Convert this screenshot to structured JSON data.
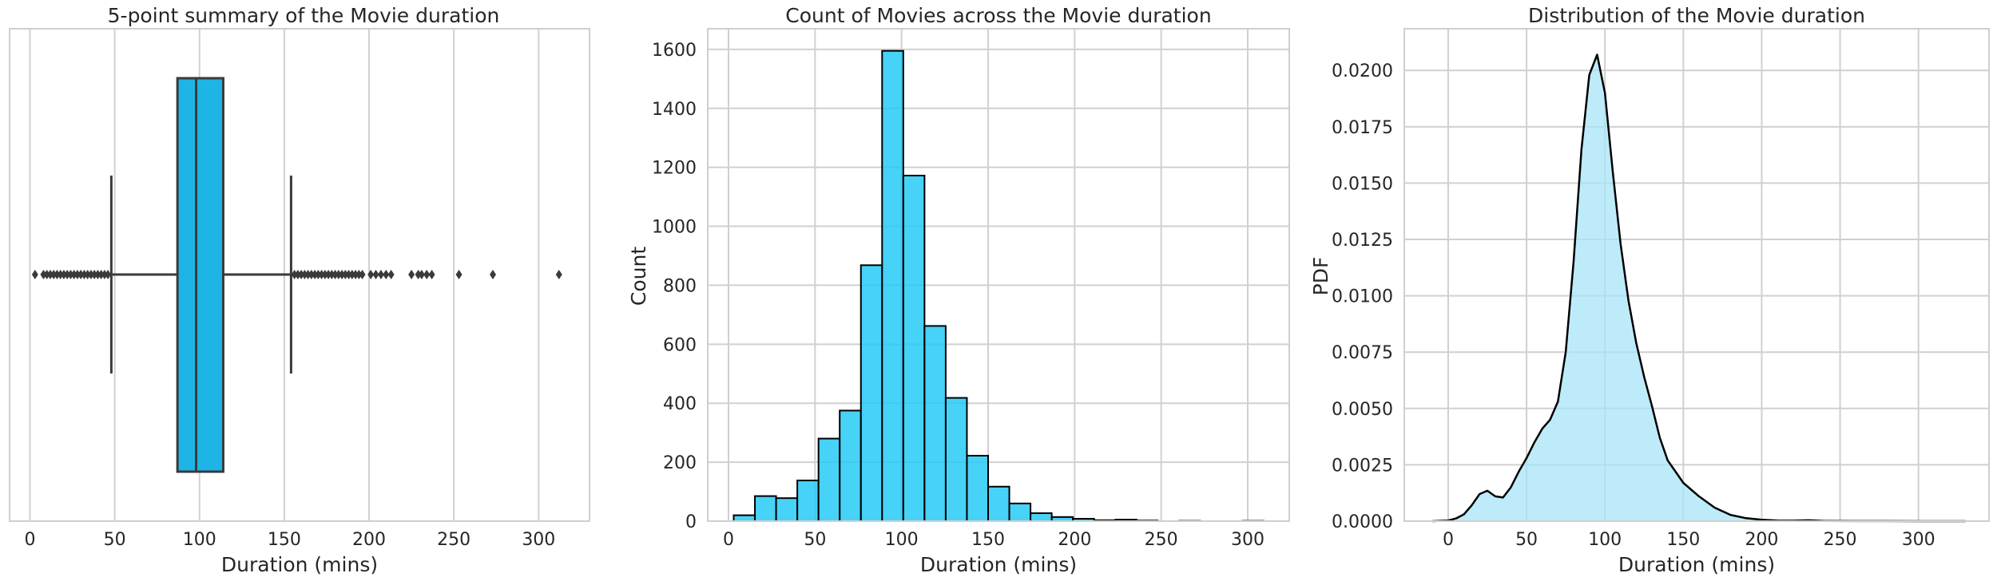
{
  "chart_data": [
    {
      "type": "box",
      "title": "5-point summary of the Movie duration",
      "xlabel": "Duration (mins)",
      "ylabel": "",
      "xlim": [
        -12,
        330
      ],
      "xticks": [
        0,
        50,
        100,
        150,
        200,
        250,
        300
      ],
      "grid": true,
      "color": "#1eb4e6",
      "stats": {
        "whisker_low": 48,
        "q1": 87,
        "median": 98,
        "q3": 114,
        "whisker_high": 154
      },
      "outliers": [
        3,
        8,
        10,
        12,
        14,
        16,
        18,
        20,
        22,
        24,
        26,
        28,
        30,
        32,
        34,
        36,
        38,
        40,
        42,
        44,
        46,
        156,
        158,
        160,
        162,
        164,
        166,
        168,
        170,
        172,
        174,
        176,
        178,
        180,
        182,
        184,
        186,
        188,
        190,
        192,
        194,
        196,
        201,
        204,
        207,
        210,
        213,
        225,
        229,
        231,
        234,
        237,
        253,
        273,
        312
      ]
    },
    {
      "type": "histogram",
      "title": "Count of Movies across the Movie duration",
      "xlabel": "Duration (mins)",
      "ylabel": "Count",
      "xlim": [
        -12,
        324
      ],
      "ylim": [
        0,
        1670
      ],
      "xticks": [
        0,
        50,
        100,
        150,
        200,
        250,
        300
      ],
      "yticks": [
        0,
        200,
        400,
        600,
        800,
        1000,
        1200,
        1400,
        1600
      ],
      "grid": true,
      "color": "#1ec8f5",
      "edge_color": "#000000",
      "bin_edges": [
        3,
        15.25,
        27.5,
        39.75,
        52,
        64.25,
        76.5,
        88.75,
        101,
        113.25,
        125.5,
        137.75,
        150,
        162.25,
        174.5,
        186.75,
        199,
        211.25,
        223.5,
        235.75,
        248,
        260.25,
        272.5,
        284.75,
        297,
        309.25
      ],
      "values": [
        20,
        85,
        78,
        138,
        280,
        375,
        868,
        1595,
        1172,
        662,
        418,
        222,
        117,
        60,
        27,
        14,
        8,
        3,
        5,
        2,
        0,
        1,
        0,
        0,
        1
      ]
    },
    {
      "type": "area",
      "title": "Distribution of the Movie duration",
      "xlabel": "Duration (mins)",
      "ylabel": "PDF",
      "xlim": [
        -28,
        345
      ],
      "ylim": [
        0,
        0.02185
      ],
      "xticks": [
        0,
        50,
        100,
        150,
        200,
        250,
        300
      ],
      "yticks": [
        "0.0000",
        "0.0025",
        "0.0050",
        "0.0075",
        "0.0100",
        "0.0125",
        "0.0150",
        "0.0175",
        "0.0200"
      ],
      "grid": true,
      "fill_color": "#a8e4f7",
      "line_color": "#000000",
      "x": [
        -10,
        0,
        5,
        10,
        15,
        20,
        25,
        30,
        35,
        40,
        45,
        50,
        55,
        60,
        65,
        70,
        75,
        80,
        85,
        90,
        95,
        100,
        105,
        110,
        115,
        120,
        125,
        130,
        135,
        140,
        145,
        150,
        155,
        160,
        170,
        180,
        190,
        200,
        210,
        220,
        230,
        240,
        260,
        280,
        300,
        330
      ],
      "y": [
        0.0,
        3e-05,
        0.00012,
        0.0003,
        0.0007,
        0.0012,
        0.00135,
        0.0011,
        0.00105,
        0.0015,
        0.0022,
        0.0028,
        0.0035,
        0.0041,
        0.0045,
        0.0053,
        0.0075,
        0.0115,
        0.0165,
        0.0198,
        0.0207,
        0.019,
        0.0155,
        0.0123,
        0.0098,
        0.0079,
        0.0064,
        0.0051,
        0.0037,
        0.0027,
        0.0022,
        0.0017,
        0.0014,
        0.0011,
        0.0006,
        0.00028,
        0.00013,
        6e-05,
        3e-05,
        2e-05,
        4e-05,
        1e-05,
        5e-06,
        2e-06,
        5e-07,
        0.0
      ]
    }
  ]
}
